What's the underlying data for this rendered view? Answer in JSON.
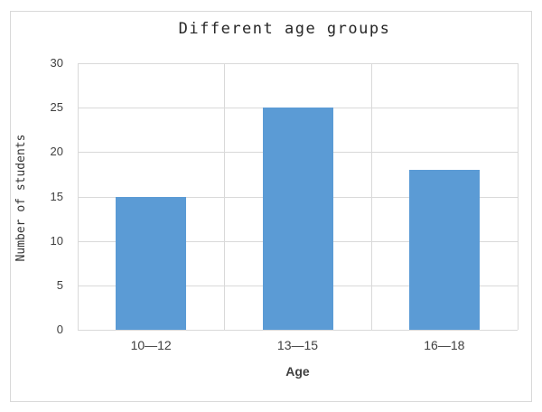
{
  "chart_data": {
    "type": "bar",
    "title": "Different age groups",
    "xlabel": "Age",
    "ylabel": "Number of students",
    "categories": [
      "10—12",
      "13—15",
      "16—18"
    ],
    "values": [
      15,
      25,
      18
    ],
    "ylim": [
      0,
      30
    ],
    "yticks": [
      0,
      5,
      10,
      15,
      20,
      25,
      30
    ],
    "grid": "horizontal gridlines at every y tick, vertical gridlines at category boundaries, grid on",
    "legend_position": "none",
    "colors": {
      "bar_fill": "#5b9bd5",
      "gridline": "#d9d9d9",
      "frame_border": "#d9d9d9",
      "tick_text": "#404040",
      "title_text": "#262626",
      "background": "#ffffff"
    }
  }
}
